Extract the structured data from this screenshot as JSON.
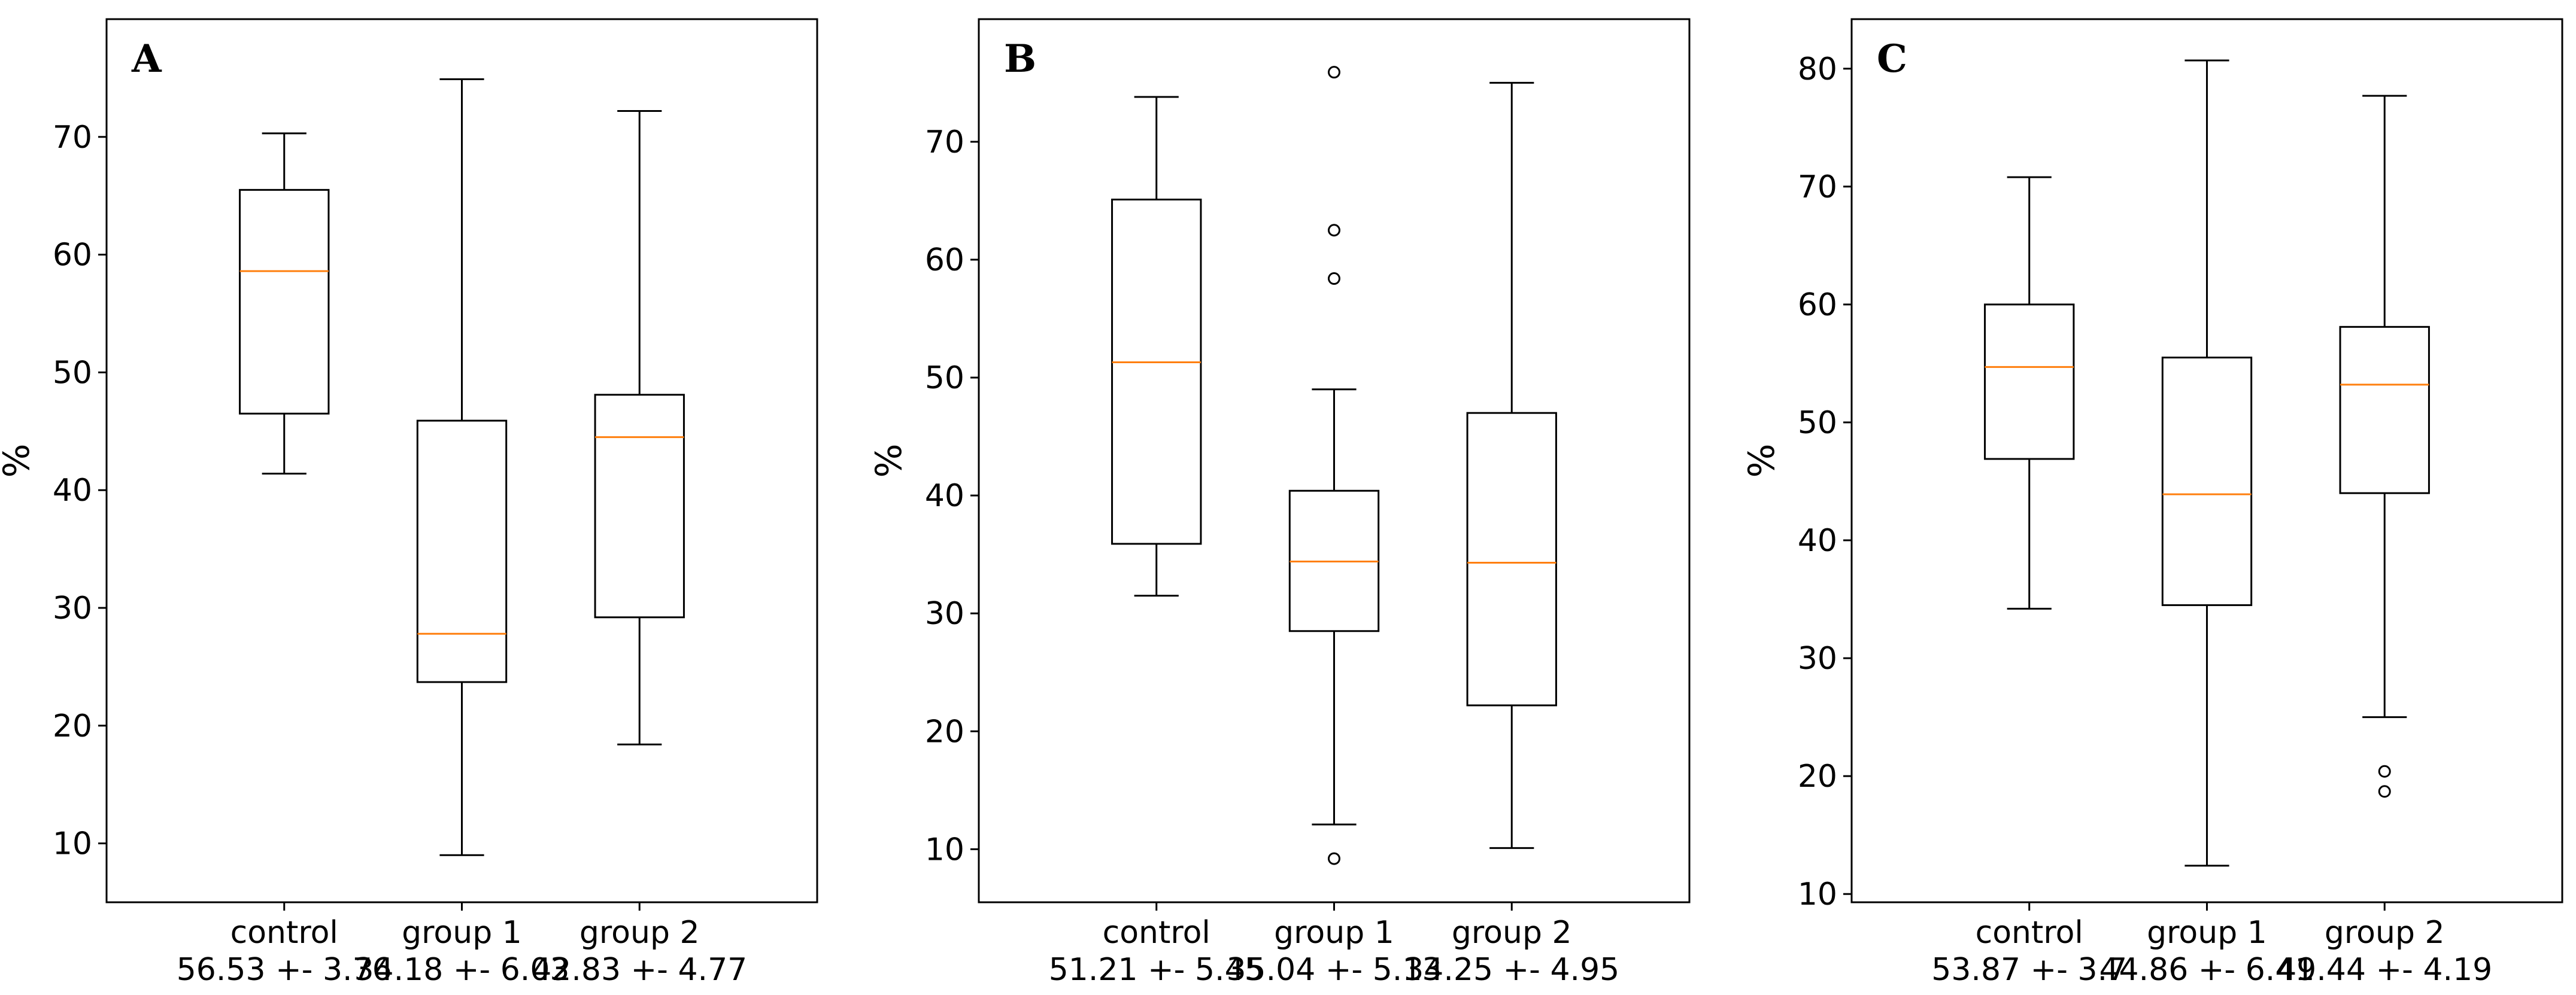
{
  "chart_data": [
    {
      "type": "box",
      "panel_label": "A",
      "ylabel": "%",
      "ylim": [
        5,
        80
      ],
      "yticks": [
        10,
        20,
        30,
        40,
        50,
        60,
        70
      ],
      "categories": [
        "control",
        "group 1",
        "group 2"
      ],
      "category_stats": [
        "56.53 +- 3.76",
        "34.18 +- 6.03",
        "42.83 +- 4.77"
      ],
      "boxes": [
        {
          "name": "control",
          "whislo": 41.4,
          "q1": 46.5,
          "med": 58.6,
          "q3": 65.5,
          "whishi": 70.3,
          "fliers": []
        },
        {
          "name": "group 1",
          "whislo": 9.0,
          "q1": 23.7,
          "med": 27.8,
          "q3": 45.9,
          "whishi": 74.9,
          "fliers": []
        },
        {
          "name": "group 2",
          "whislo": 18.4,
          "q1": 29.2,
          "med": 44.5,
          "q3": 48.1,
          "whishi": 72.2,
          "fliers": []
        }
      ]
    },
    {
      "type": "box",
      "panel_label": "B",
      "ylabel": "%",
      "ylim": [
        5.5,
        80.4
      ],
      "yticks": [
        10,
        20,
        30,
        40,
        50,
        60,
        70
      ],
      "categories": [
        "control",
        "group 1",
        "group 2"
      ],
      "category_stats": [
        "51.21 +- 5.45",
        "35.04 +- 5.13",
        "34.25 +- 4.95"
      ],
      "boxes": [
        {
          "name": "control",
          "whislo": 31.5,
          "q1": 35.9,
          "med": 51.3,
          "q3": 65.1,
          "whishi": 73.8,
          "fliers": []
        },
        {
          "name": "group 1",
          "whislo": 12.1,
          "q1": 28.5,
          "med": 34.4,
          "q3": 40.4,
          "whishi": 49.0,
          "fliers": [
            9.2,
            58.4,
            62.5,
            75.9
          ]
        },
        {
          "name": "group 2",
          "whislo": 10.1,
          "q1": 22.2,
          "med": 34.3,
          "q3": 47.0,
          "whishi": 75.0,
          "fliers": []
        }
      ]
    },
    {
      "type": "box",
      "panel_label": "C",
      "ylabel": "%",
      "ylim": [
        9.3,
        84.2
      ],
      "yticks": [
        10,
        20,
        30,
        40,
        50,
        60,
        70,
        80
      ],
      "categories": [
        "control",
        "group 1",
        "group 2"
      ],
      "category_stats": [
        "53.87 +- 3.7",
        "44.86 +- 6.41",
        "49.44 +- 4.19"
      ],
      "boxes": [
        {
          "name": "control",
          "whislo": 34.2,
          "q1": 46.9,
          "med": 54.7,
          "q3": 60.0,
          "whishi": 70.8,
          "fliers": []
        },
        {
          "name": "group 1",
          "whislo": 12.4,
          "q1": 34.5,
          "med": 43.9,
          "q3": 55.5,
          "whishi": 80.7,
          "fliers": []
        },
        {
          "name": "group 2",
          "whislo": 25.0,
          "q1": 44.0,
          "med": 53.2,
          "q3": 58.1,
          "whishi": 77.7,
          "fliers": [
            18.7,
            20.4
          ]
        }
      ]
    }
  ]
}
